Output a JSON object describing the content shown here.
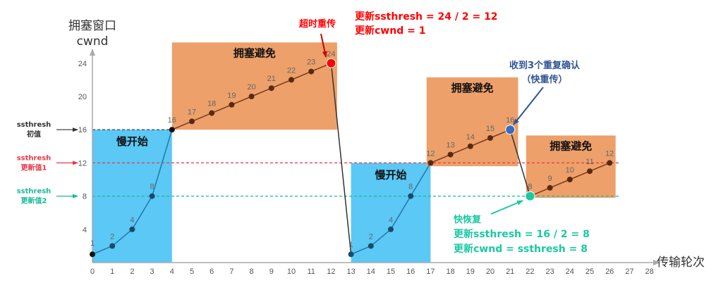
{
  "chart_data": {
    "type": "line",
    "ylabel_line1": "拥塞窗口",
    "ylabel_line2": "cwnd",
    "xlabel": "传输轮次",
    "xlim": [
      0,
      28
    ],
    "ylim": [
      0,
      26
    ],
    "x_ticks": [
      0,
      1,
      2,
      3,
      4,
      5,
      6,
      7,
      8,
      9,
      10,
      11,
      12,
      13,
      14,
      15,
      16,
      17,
      18,
      19,
      20,
      21,
      22,
      23,
      24,
      25,
      26,
      27,
      28
    ],
    "y_ticks": [
      0,
      4,
      8,
      12,
      16,
      20,
      24
    ],
    "series": [
      {
        "x": [
          0,
          1,
          2,
          3,
          4
        ],
        "y": [
          1,
          2,
          4,
          8,
          16
        ],
        "color": "#2277a8"
      },
      {
        "x": [
          4,
          5,
          6,
          7,
          8,
          9,
          10,
          11,
          12
        ],
        "y": [
          16,
          17,
          18,
          19,
          20,
          21,
          22,
          23,
          24
        ],
        "color": "#7a3a1a"
      },
      {
        "x": [
          12,
          13
        ],
        "y": [
          24,
          1
        ],
        "color": "#333333"
      },
      {
        "x": [
          13,
          14,
          15,
          16,
          17
        ],
        "y": [
          1,
          2,
          4,
          8,
          12
        ],
        "color": "#2277a8"
      },
      {
        "x": [
          17,
          18,
          19,
          20,
          21
        ],
        "y": [
          12,
          13,
          14,
          15,
          16
        ],
        "color": "#7a3a1a"
      },
      {
        "x": [
          21,
          22
        ],
        "y": [
          16,
          8
        ],
        "color": "#333333"
      },
      {
        "x": [
          22,
          23,
          24,
          25,
          26
        ],
        "y": [
          8,
          9,
          10,
          11,
          12
        ],
        "color": "#7a3a1a"
      }
    ],
    "points": [
      {
        "x": 0,
        "y": 1,
        "label": "1"
      },
      {
        "x": 1,
        "y": 2,
        "label": "2"
      },
      {
        "x": 2,
        "y": 4,
        "label": "4"
      },
      {
        "x": 3,
        "y": 8,
        "label": "8"
      },
      {
        "x": 4,
        "y": 16,
        "label": "16"
      },
      {
        "x": 5,
        "y": 17,
        "label": "17"
      },
      {
        "x": 6,
        "y": 18,
        "label": "18"
      },
      {
        "x": 7,
        "y": 19,
        "label": "19"
      },
      {
        "x": 8,
        "y": 20,
        "label": "20"
      },
      {
        "x": 9,
        "y": 21,
        "label": "21"
      },
      {
        "x": 10,
        "y": 22,
        "label": "22"
      },
      {
        "x": 11,
        "y": 23,
        "label": "23"
      },
      {
        "x": 12,
        "y": 24,
        "label": "24"
      },
      {
        "x": 13,
        "y": 1,
        "label": "1"
      },
      {
        "x": 14,
        "y": 2,
        "label": "2"
      },
      {
        "x": 15,
        "y": 4,
        "label": "4"
      },
      {
        "x": 16,
        "y": 8,
        "label": "8"
      },
      {
        "x": 17,
        "y": 12,
        "label": "12"
      },
      {
        "x": 18,
        "y": 13,
        "label": "13"
      },
      {
        "x": 19,
        "y": 14,
        "label": "14"
      },
      {
        "x": 20,
        "y": 15,
        "label": "15"
      },
      {
        "x": 21,
        "y": 16,
        "label": "16"
      },
      {
        "x": 22,
        "y": 8,
        "label": "8"
      },
      {
        "x": 23,
        "y": 9,
        "label": "9"
      },
      {
        "x": 24,
        "y": 10,
        "label": "10"
      },
      {
        "x": 25,
        "y": 11,
        "label": "11"
      },
      {
        "x": 26,
        "y": 12,
        "label": "12"
      }
    ],
    "regions": [
      {
        "x0": 0,
        "x1": 4,
        "y0": 0,
        "y1": 16,
        "color": "#5bc8f5",
        "label": "慢开始"
      },
      {
        "x0": 13,
        "x1": 17,
        "y0": 0,
        "y1": 12,
        "color": "#5bc8f5",
        "label": "慢开始"
      },
      {
        "x0": 4,
        "x1": 12.3,
        "y0": 16,
        "y1": 26.5,
        "color": "#eda06a",
        "label": "拥塞避免"
      },
      {
        "x0": 16.8,
        "x1": 21.4,
        "y0": 11.6,
        "y1": 22.3,
        "color": "#eda06a",
        "label": "拥塞避免"
      },
      {
        "x0": 21.8,
        "x1": 26.3,
        "y0": 7.8,
        "y1": 15.3,
        "color": "#eda06a",
        "label": "拥塞避免"
      }
    ],
    "thresholds": [
      {
        "y": 16,
        "color": "#333333",
        "label_lines": [
          "ssthresh",
          "初值"
        ]
      },
      {
        "y": 12,
        "color": "#e63946",
        "label_lines": [
          "ssthresh",
          "更新值1"
        ]
      },
      {
        "y": 8,
        "color": "#1ab99a",
        "label_lines": [
          "ssthresh",
          "更新值2"
        ]
      }
    ],
    "events": [
      {
        "x": 12,
        "y": 24,
        "color": "#ff0000",
        "label": "超时重传"
      },
      {
        "x": 21,
        "y": 16,
        "color": "#3a6bbf",
        "label_lines": [
          "收到3个重复确认",
          "（快重传）"
        ]
      },
      {
        "x": 22,
        "y": 8,
        "color": "#1ac9a0",
        "label": "快恢复"
      }
    ],
    "annotations": {
      "timeout_lines": [
        "更新ssthresh = 24 / 2 = 12",
        "更新cwnd = 1"
      ],
      "fast_recovery_lines": [
        "更新ssthresh = 16 / 2 = 8",
        "更新cwnd = ssthresh = 8"
      ]
    }
  }
}
